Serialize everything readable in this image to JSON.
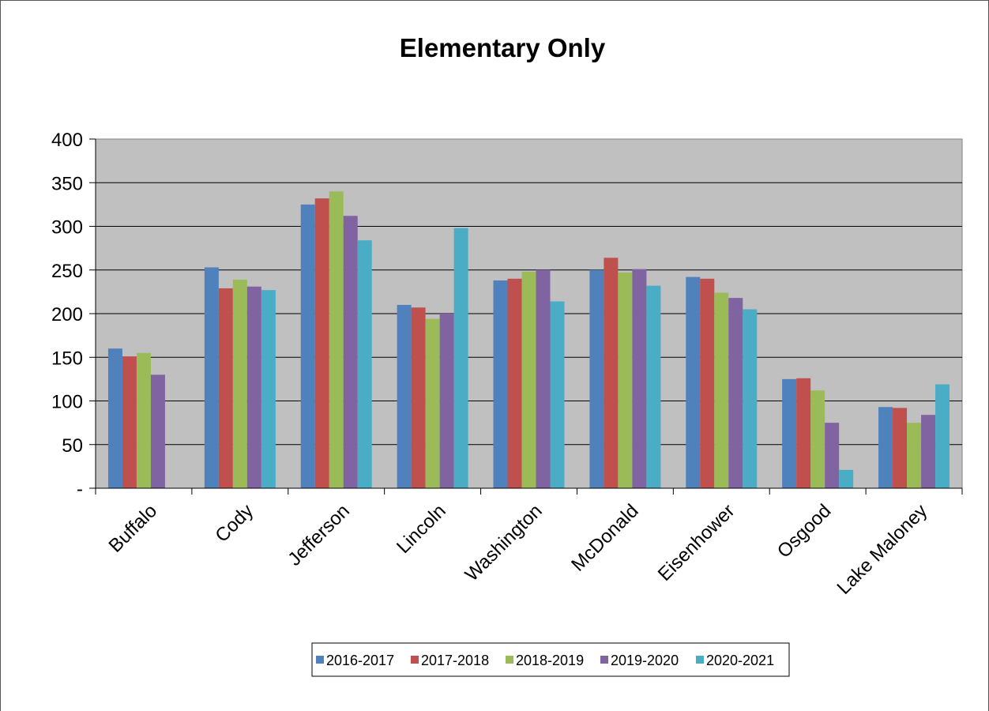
{
  "chart_data": {
    "type": "bar",
    "title": "Elementary Only",
    "xlabel": "",
    "ylabel": "",
    "ylim": [
      0,
      400
    ],
    "yticks": [
      0,
      50,
      100,
      150,
      200,
      250,
      300,
      350,
      400
    ],
    "ytick_labels": [
      "-",
      "50",
      "100",
      "150",
      "200",
      "250",
      "300",
      "350",
      "400"
    ],
    "grid": true,
    "legend_position": "bottom",
    "categories": [
      "Buffalo",
      "Cody",
      "Jefferson",
      "Lincoln",
      "Washington",
      "McDonald",
      "Eisenhower",
      "Osgood",
      "Lake Maloney"
    ],
    "series": [
      {
        "name": "2016-2017",
        "color": "#4F81BD",
        "values": [
          160,
          253,
          325,
          210,
          238,
          250,
          242,
          125,
          93
        ]
      },
      {
        "name": "2017-2018",
        "color": "#C0504D",
        "values": [
          151,
          229,
          332,
          207,
          240,
          264,
          240,
          126,
          92
        ]
      },
      {
        "name": "2018-2019",
        "color": "#9BBB59",
        "values": [
          155,
          239,
          340,
          194,
          248,
          247,
          224,
          112,
          75
        ]
      },
      {
        "name": "2019-2020",
        "color": "#8064A2",
        "values": [
          130,
          231,
          312,
          200,
          250,
          251,
          218,
          75,
          84
        ]
      },
      {
        "name": "2020-2021",
        "color": "#4BACC6",
        "values": [
          0,
          227,
          284,
          298,
          214,
          232,
          205,
          21,
          119
        ]
      }
    ],
    "plot_background": "#C0C0C0"
  }
}
